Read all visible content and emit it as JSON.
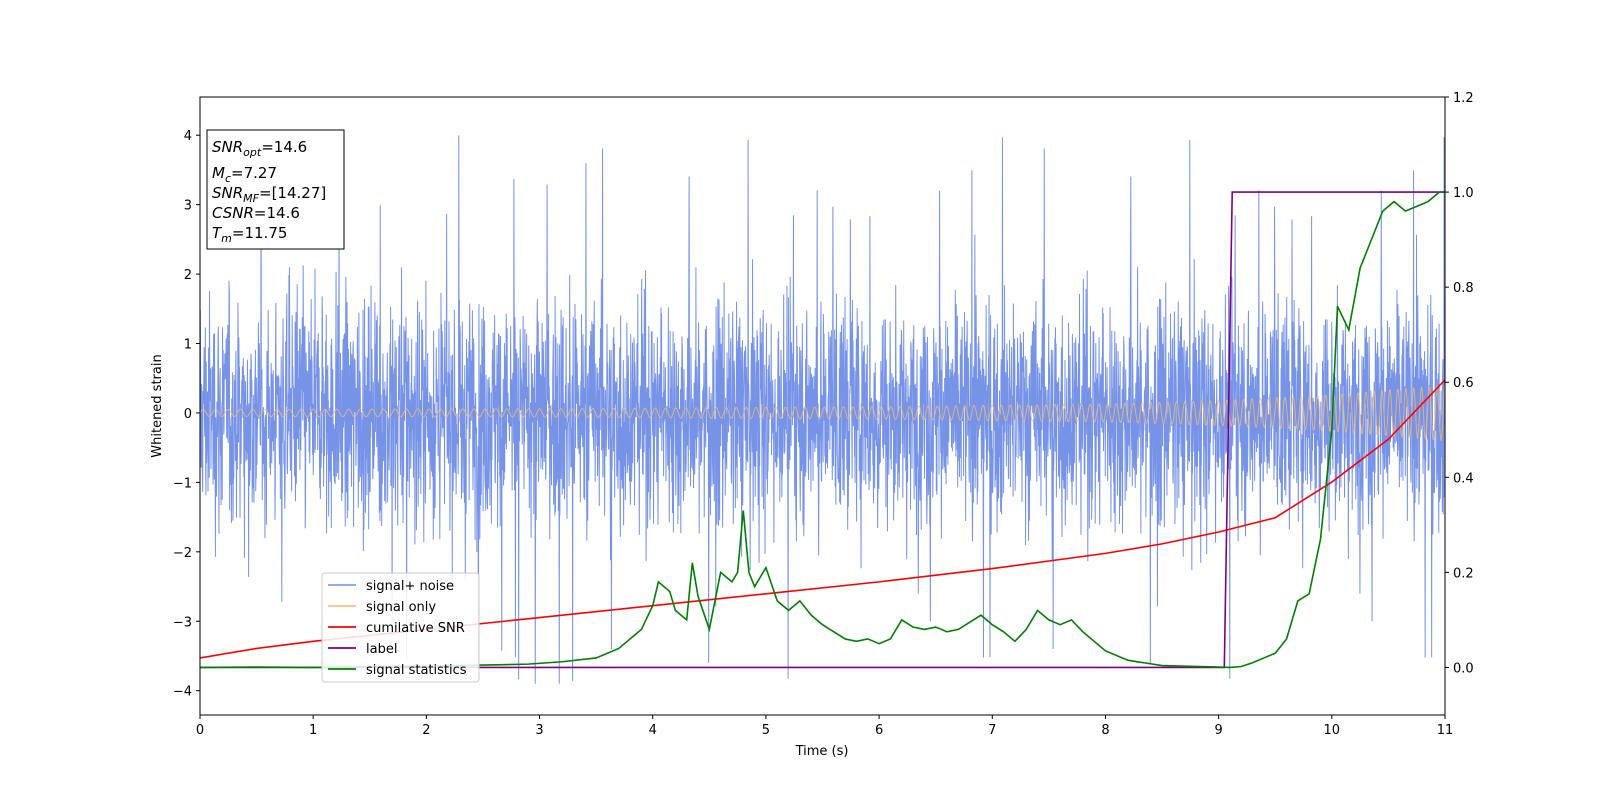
{
  "chart_data": {
    "type": "line",
    "xlabel": "Time (s)",
    "ylabel": "Whitened strain",
    "xlim": [
      0,
      11
    ],
    "ylim_left": [
      -4.35,
      4.55
    ],
    "ylim_right": [
      -0.1,
      1.2
    ],
    "x_ticks": [
      0,
      1,
      2,
      3,
      4,
      5,
      6,
      7,
      8,
      9,
      10,
      11
    ],
    "x_tick_labels": [
      "0",
      "1",
      "2",
      "3",
      "4",
      "5",
      "6",
      "7",
      "8",
      "9",
      "10",
      "11"
    ],
    "y_ticks_left": [
      -4,
      -3,
      -2,
      -1,
      0,
      1,
      2,
      3,
      4
    ],
    "y_tick_labels_left": [
      "−4",
      "−3",
      "−2",
      "−1",
      "0",
      "1",
      "2",
      "3",
      "4"
    ],
    "y_ticks_right": [
      0.0,
      0.2,
      0.4,
      0.6,
      0.8,
      1.0,
      1.2
    ],
    "y_tick_labels_right": [
      "0.0",
      "0.2",
      "0.4",
      "0.6",
      "0.8",
      "1.0",
      "1.2"
    ],
    "legend_position": "lower-left",
    "info_box": {
      "lines": [
        {
          "base": "SNR",
          "sub": "opt",
          "rest": "=14.6"
        },
        {
          "base": "M",
          "sub": "c",
          "rest": "=7.27"
        },
        {
          "base": "SNR",
          "sub": "MF",
          "rest": "=[14.27]"
        },
        {
          "base": "CSNR",
          "sub": "",
          "rest": "=14.6"
        },
        {
          "base": "T",
          "sub": "m",
          "rest": "=11.75"
        }
      ]
    },
    "series": [
      {
        "name": "signal+ noise",
        "axis": "left",
        "color": "#6f8de6",
        "style": "noise",
        "description_values": {
          "typical_amplitude": 1.6,
          "peak_amplitude": 4.2
        }
      },
      {
        "name": "signal only",
        "axis": "left",
        "color": "#f5b971",
        "style": "chirp",
        "amplitude_envelope": {
          "x": [
            0,
            3,
            6,
            8,
            9,
            10,
            11
          ],
          "y": [
            0.05,
            0.06,
            0.09,
            0.13,
            0.18,
            0.26,
            0.4
          ]
        }
      },
      {
        "name": "cumilative SNR",
        "axis": "right",
        "color": "#ff0000",
        "x": [
          0,
          0.5,
          1,
          2,
          3,
          4,
          5,
          6,
          7,
          8,
          8.5,
          9,
          9.5,
          10,
          10.5,
          11
        ],
        "y": [
          0.02,
          0.04,
          0.055,
          0.08,
          0.105,
          0.13,
          0.155,
          0.18,
          0.208,
          0.24,
          0.26,
          0.285,
          0.315,
          0.39,
          0.48,
          0.605
        ]
      },
      {
        "name": "label",
        "axis": "right",
        "color": "#800080",
        "x": [
          0,
          9.05,
          9.12,
          11
        ],
        "y": [
          0.0,
          0.0,
          1.0,
          1.0
        ]
      },
      {
        "name": "signal statistics",
        "axis": "right",
        "color": "#008000",
        "x": [
          0,
          0.5,
          1,
          1.5,
          2,
          2.5,
          2.9,
          3.2,
          3.5,
          3.7,
          3.9,
          4.0,
          4.05,
          4.15,
          4.2,
          4.3,
          4.35,
          4.4,
          4.5,
          4.6,
          4.7,
          4.75,
          4.8,
          4.85,
          4.9,
          5.0,
          5.1,
          5.2,
          5.3,
          5.4,
          5.5,
          5.6,
          5.7,
          5.8,
          5.9,
          6.0,
          6.1,
          6.2,
          6.3,
          6.4,
          6.5,
          6.6,
          6.7,
          6.8,
          6.9,
          7.0,
          7.1,
          7.2,
          7.3,
          7.4,
          7.5,
          7.6,
          7.7,
          7.8,
          8.0,
          8.2,
          8.5,
          9.0,
          9.1,
          9.2,
          9.3,
          9.4,
          9.5,
          9.6,
          9.7,
          9.8,
          9.9,
          10.0,
          10.05,
          10.15,
          10.25,
          10.35,
          10.45,
          10.55,
          10.65,
          10.75,
          10.85,
          10.95,
          11.0
        ],
        "y": [
          0.0,
          0.001,
          0.0,
          0.002,
          0.003,
          0.005,
          0.007,
          0.012,
          0.02,
          0.04,
          0.08,
          0.13,
          0.18,
          0.16,
          0.12,
          0.1,
          0.22,
          0.15,
          0.08,
          0.2,
          0.18,
          0.2,
          0.33,
          0.2,
          0.17,
          0.21,
          0.14,
          0.12,
          0.14,
          0.11,
          0.09,
          0.075,
          0.06,
          0.055,
          0.06,
          0.05,
          0.06,
          0.1,
          0.085,
          0.08,
          0.085,
          0.075,
          0.08,
          0.095,
          0.11,
          0.09,
          0.075,
          0.055,
          0.08,
          0.12,
          0.1,
          0.09,
          0.1,
          0.075,
          0.035,
          0.015,
          0.004,
          0.001,
          0.0,
          0.002,
          0.01,
          0.02,
          0.03,
          0.06,
          0.14,
          0.155,
          0.27,
          0.5,
          0.76,
          0.71,
          0.84,
          0.9,
          0.96,
          0.98,
          0.96,
          0.97,
          0.98,
          1.0,
          1.0
        ]
      }
    ]
  }
}
